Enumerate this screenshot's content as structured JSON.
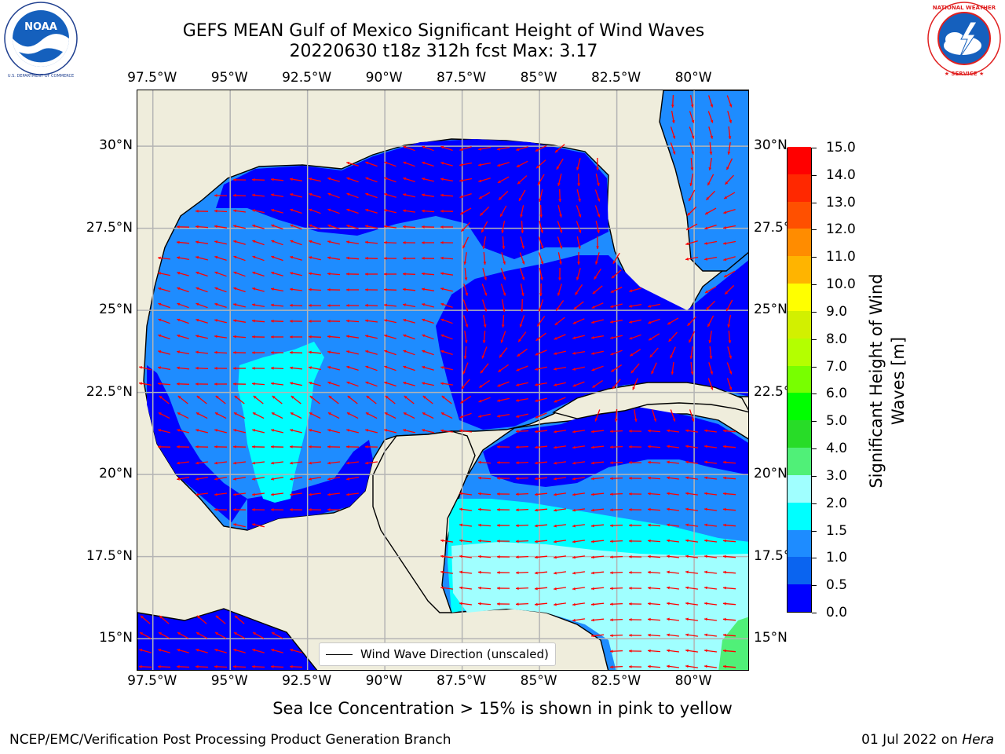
{
  "title_line1": "GEFS MEAN Gulf of Mexico Significant Height of Wind Waves",
  "title_line2": "20220630 t18z 312h fcst   Max: 3.17",
  "lon_labels": [
    "97.5°W",
    "95°W",
    "92.5°W",
    "90°W",
    "87.5°W",
    "85°W",
    "82.5°W",
    "80°W"
  ],
  "lat_labels": [
    "30°N",
    "27.5°N",
    "25°N",
    "22.5°N",
    "20°N",
    "17.5°N",
    "15°N"
  ],
  "legend_label": "Wind Wave Direction (unscaled)",
  "colorbar": {
    "title": "Significant Height of Wind Waves [m]",
    "tick_labels": [
      "0.0",
      "0.5",
      "1.0",
      "1.5",
      "2.0",
      "3.0",
      "4.0",
      "5.0",
      "6.0",
      "7.0",
      "8.0",
      "9.0",
      "10.0",
      "11.0",
      "12.0",
      "13.0",
      "14.0",
      "15.0"
    ],
    "colors": [
      "#0000ff",
      "#0a64f0",
      "#1e8cff",
      "#00ffff",
      "#50ffff",
      "#a0ffff",
      "#50f078",
      "#28dc28",
      "#00ff00",
      "#78ff00",
      "#b4ff00",
      "#d2f000",
      "#ffff00",
      "#ffdc00",
      "#ffb400",
      "#ff8c00",
      "#ff5000",
      "#ff2800",
      "#ff0000"
    ]
  },
  "footnote": "Sea Ice Concentration > 15% is shown in pink to yellow",
  "footer_left": "NCEP/EMC/Verification Post Processing Product Generation Branch",
  "footer_date": "01 Jul 2022 on ",
  "footer_host": "Hera",
  "logos": {
    "left": "noaa-logo",
    "right": "national-weather-service-logo"
  },
  "logo_text": {
    "noaa_center": "NOAA",
    "noaa_ring": "NATIONAL OCEANIC AND ATMOSPHERIC ADMINISTRATION · U.S. DEPARTMENT OF COMMERCE",
    "nws_ring": "NATIONAL WEATHER SERVICE"
  },
  "colors": {
    "land": "#efeddc",
    "arrow": "#ff0000",
    "grid": "#b4b4b4",
    "coast": "#000000"
  },
  "chart_data": {
    "type": "heatmap",
    "title": "GEFS MEAN Gulf of Mexico Significant Height of Wind Waves",
    "subtitle": "20220630 t18z 312h fcst   Max: 3.17",
    "extent": {
      "lon": [
        -98.0,
        -78.2
      ],
      "lat": [
        14.0,
        31.7
      ]
    },
    "grid_lon": [
      -97.5,
      -95.0,
      -92.5,
      -90.0,
      -87.5,
      -85.0,
      -82.5,
      -80.0
    ],
    "grid_lat": [
      15.0,
      17.5,
      20.0,
      22.5,
      25.0,
      27.5,
      30.0
    ],
    "colorbar_levels": [
      0.0,
      0.5,
      1.0,
      1.5,
      2.0,
      3.0,
      4.0,
      5.0,
      6.0,
      7.0,
      8.0,
      9.0,
      10.0,
      11.0,
      12.0,
      13.0,
      14.0,
      15.0
    ],
    "max_value": 3.17,
    "units": "m"
  }
}
